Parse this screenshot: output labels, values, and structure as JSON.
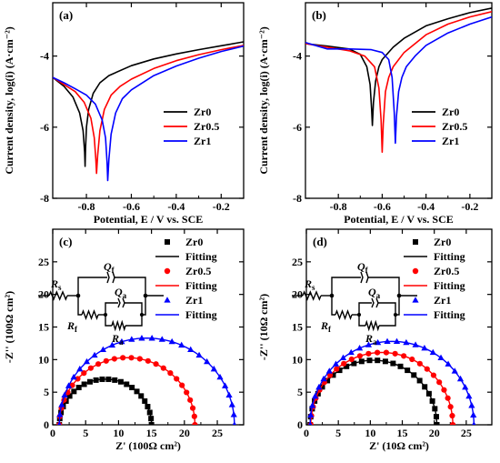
{
  "colors": {
    "Zr0": "#000000",
    "Zr0.5": "#ff0000",
    "Zr1": "#0000ff",
    "axis": "#000000"
  },
  "chart_data": [
    {
      "panel": "(a)",
      "type": "line",
      "xlabel": "Potential, E / V vs. SCE",
      "ylabel": "Current density, log(i) (A·cm⁻²)",
      "xlim": [
        -0.95,
        -0.1
      ],
      "ylim": [
        -8,
        -2.5
      ],
      "xticks": [
        -0.8,
        -0.6,
        -0.4,
        -0.2
      ],
      "xticklabels": [
        "-0.8",
        "-0.6",
        "-0.4",
        "-0.2"
      ],
      "yticks": [
        -8,
        -6,
        -4
      ],
      "yticklabels": [
        "-8",
        "-6",
        "-4"
      ],
      "legend": {
        "placement": "bottom-right",
        "entries": [
          "Zr0",
          "Zr0.5",
          "Zr1"
        ]
      },
      "series": [
        {
          "name": "Zr0",
          "color": "#000000",
          "x": [
            -0.95,
            -0.9,
            -0.86,
            -0.83,
            -0.815,
            -0.808,
            -0.806,
            -0.804,
            -0.8,
            -0.79,
            -0.77,
            -0.74,
            -0.7,
            -0.6,
            -0.5,
            -0.4,
            -0.3,
            -0.2,
            -0.1
          ],
          "y": [
            -4.6,
            -4.85,
            -5.15,
            -5.6,
            -6.1,
            -6.7,
            -7.1,
            -6.6,
            -6.0,
            -5.5,
            -5.05,
            -4.75,
            -4.55,
            -4.27,
            -4.08,
            -3.94,
            -3.82,
            -3.71,
            -3.6
          ]
        },
        {
          "name": "Zr0.5",
          "color": "#ff0000",
          "x": [
            -0.95,
            -0.9,
            -0.85,
            -0.81,
            -0.78,
            -0.765,
            -0.758,
            -0.755,
            -0.75,
            -0.74,
            -0.72,
            -0.69,
            -0.65,
            -0.6,
            -0.5,
            -0.4,
            -0.3,
            -0.2,
            -0.1
          ],
          "y": [
            -4.6,
            -4.8,
            -5.0,
            -5.3,
            -5.75,
            -6.3,
            -6.9,
            -7.3,
            -6.8,
            -6.1,
            -5.5,
            -5.1,
            -4.85,
            -4.65,
            -4.35,
            -4.13,
            -3.96,
            -3.82,
            -3.7
          ]
        },
        {
          "name": "Zr1",
          "color": "#0000ff",
          "x": [
            -0.95,
            -0.9,
            -0.85,
            -0.8,
            -0.76,
            -0.73,
            -0.715,
            -0.708,
            -0.705,
            -0.7,
            -0.69,
            -0.67,
            -0.64,
            -0.6,
            -0.5,
            -0.4,
            -0.3,
            -0.2,
            -0.1
          ],
          "y": [
            -4.6,
            -4.75,
            -4.92,
            -5.1,
            -5.35,
            -5.8,
            -6.3,
            -7.0,
            -7.5,
            -6.9,
            -6.2,
            -5.6,
            -5.2,
            -4.95,
            -4.55,
            -4.28,
            -4.06,
            -3.87,
            -3.72
          ]
        }
      ]
    },
    {
      "panel": "(b)",
      "type": "line",
      "xlabel": "Potential, E / V vs. SCE",
      "ylabel": "Current density, log(i) (A·cm⁻²)",
      "xlim": [
        -0.95,
        -0.1
      ],
      "ylim": [
        -8,
        -2.5
      ],
      "xticks": [
        -0.8,
        -0.6,
        -0.4,
        -0.2
      ],
      "xticklabels": [
        "-0.8",
        "-0.6",
        "-0.4",
        "-0.2"
      ],
      "yticks": [
        -8,
        -6,
        -4
      ],
      "yticklabels": [
        "-8",
        "-6",
        "-4"
      ],
      "legend": {
        "placement": "bottom-right",
        "entries": [
          "Zr0",
          "Zr0.5",
          "Zr1"
        ]
      },
      "series": [
        {
          "name": "Zr0",
          "color": "#000000",
          "x": [
            -0.95,
            -0.85,
            -0.75,
            -0.7,
            -0.67,
            -0.655,
            -0.648,
            -0.645,
            -0.64,
            -0.63,
            -0.615,
            -0.6,
            -0.55,
            -0.5,
            -0.4,
            -0.3,
            -0.2,
            -0.1
          ],
          "y": [
            -3.65,
            -3.72,
            -3.8,
            -3.95,
            -4.3,
            -4.8,
            -5.5,
            -5.95,
            -5.3,
            -4.7,
            -4.3,
            -4.1,
            -3.75,
            -3.5,
            -3.15,
            -2.95,
            -2.78,
            -2.65
          ]
        },
        {
          "name": "Zr0.5",
          "color": "#ff0000",
          "x": [
            -0.95,
            -0.85,
            -0.75,
            -0.68,
            -0.635,
            -0.615,
            -0.605,
            -0.6,
            -0.595,
            -0.585,
            -0.57,
            -0.55,
            -0.5,
            -0.4,
            -0.3,
            -0.2,
            -0.1
          ],
          "y": [
            -3.65,
            -3.75,
            -3.85,
            -4.0,
            -4.3,
            -4.9,
            -5.8,
            -6.7,
            -5.9,
            -5.0,
            -4.6,
            -4.3,
            -3.9,
            -3.4,
            -3.1,
            -2.9,
            -2.75
          ]
        },
        {
          "name": "Zr1",
          "color": "#0000ff",
          "x": [
            -0.95,
            -0.85,
            -0.75,
            -0.65,
            -0.6,
            -0.57,
            -0.555,
            -0.545,
            -0.54,
            -0.535,
            -0.525,
            -0.51,
            -0.49,
            -0.45,
            -0.4,
            -0.3,
            -0.2,
            -0.1
          ],
          "y": [
            -3.62,
            -3.8,
            -3.8,
            -3.82,
            -3.9,
            -4.1,
            -4.6,
            -5.6,
            -6.45,
            -5.7,
            -5.0,
            -4.6,
            -4.3,
            -4.0,
            -3.7,
            -3.35,
            -3.1,
            -2.9
          ]
        }
      ]
    },
    {
      "panel": "(c)",
      "type": "scatter",
      "xlabel": "Z' (100Ω cm²)",
      "ylabel": "-Z'' (100Ω cm²)",
      "xlim": [
        0,
        29
      ],
      "ylim": [
        0,
        30
      ],
      "xticks": [
        0,
        5,
        10,
        15,
        20,
        25
      ],
      "xticklabels": [
        "0",
        "5",
        "10",
        "15",
        "20",
        "25"
      ],
      "yticks": [
        0,
        5,
        10,
        15,
        20,
        25
      ],
      "yticklabels": [
        "0",
        "5",
        "10",
        "15",
        "20",
        "25"
      ],
      "legend": {
        "placement": "top-right",
        "entries": [
          "Zr0",
          "Fitting",
          "Zr0.5",
          "Fitting",
          "Zr1",
          "Fitting"
        ]
      },
      "circuit": {
        "labels": [
          "R",
          "s",
          "Q",
          "f",
          "Q",
          "a",
          "R",
          "f",
          "R",
          "a"
        ]
      },
      "series": [
        {
          "name": "Zr0",
          "color": "#000000",
          "marker": "square",
          "center": 8.0,
          "radius": 7.0,
          "shift": 1.6,
          "points": 24
        },
        {
          "name": "Zr0.5",
          "color": "#ff0000",
          "marker": "circle",
          "center": 11.3,
          "radius": 10.3,
          "shift": 2.4,
          "points": 26
        },
        {
          "name": "Zr1",
          "color": "#0000ff",
          "marker": "triangle",
          "center": 14.3,
          "radius": 13.3,
          "shift": 3.3,
          "points": 28
        }
      ]
    },
    {
      "panel": "(d)",
      "type": "scatter",
      "xlabel": "Z' (10Ω cm²)",
      "ylabel": "-Z'' (10Ω cm²)",
      "xlim": [
        0,
        29
      ],
      "ylim": [
        0,
        30
      ],
      "xticks": [
        0,
        5,
        10,
        15,
        20,
        25
      ],
      "xticklabels": [
        "0",
        "5",
        "10",
        "15",
        "20",
        "25"
      ],
      "yticks": [
        0,
        5,
        10,
        15,
        20,
        25
      ],
      "yticklabels": [
        "0",
        "5",
        "10",
        "15",
        "20",
        "25"
      ],
      "legend": {
        "placement": "top-right",
        "entries": [
          "Zr0",
          "Fitting",
          "Zr0.5",
          "Fitting",
          "Zr1",
          "Fitting"
        ]
      },
      "circuit": {
        "labels": [
          "R",
          "s",
          "Q",
          "f",
          "Q",
          "a",
          "R",
          "f",
          "R",
          "a"
        ]
      },
      "series": [
        {
          "name": "Zr0",
          "color": "#000000",
          "marker": "square",
          "center": 10.5,
          "radius": 9.9,
          "shift": 2.0,
          "points": 26
        },
        {
          "name": "Zr0.5",
          "color": "#ff0000",
          "marker": "circle",
          "center": 11.8,
          "radius": 11.1,
          "shift": 2.2,
          "points": 26
        },
        {
          "name": "Zr1",
          "color": "#0000ff",
          "marker": "triangle",
          "center": 13.4,
          "radius": 12.8,
          "shift": 2.5,
          "points": 28
        }
      ]
    }
  ]
}
